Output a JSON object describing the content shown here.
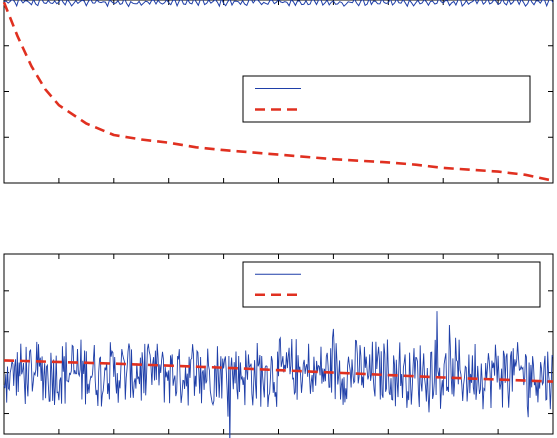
{
  "chart_data": [
    {
      "type": "line",
      "title": "",
      "xlabel": "",
      "ylabel": "",
      "grid": false,
      "legend": {
        "position": "center-right",
        "entries": [
          "",
          ""
        ]
      },
      "xlim": [
        0,
        10
      ],
      "ylim": [
        0,
        4
      ],
      "series": [
        {
          "color": "#1f3fa8",
          "style": "solid",
          "kind": "noise",
          "baseline": 3.95,
          "amplitude": 0.1,
          "x": [
            0,
            10
          ],
          "values": [
            3.95,
            3.95
          ]
        },
        {
          "color": "#e03020",
          "style": "dashed",
          "x": [
            0,
            0.25,
            0.5,
            0.75,
            1.0,
            1.5,
            2.0,
            2.5,
            3.0,
            3.5,
            4.0,
            5.0,
            6.0,
            7.0,
            7.5,
            8.0,
            9.0,
            9.5,
            10.0
          ],
          "values": [
            3.95,
            3.2,
            2.55,
            2.05,
            1.7,
            1.3,
            1.05,
            0.95,
            0.88,
            0.78,
            0.72,
            0.62,
            0.52,
            0.45,
            0.4,
            0.33,
            0.25,
            0.18,
            0.05
          ]
        }
      ]
    },
    {
      "type": "line",
      "title": "",
      "xlabel": "",
      "ylabel": "",
      "grid": false,
      "legend": {
        "position": "top-right",
        "entries": [
          "",
          ""
        ]
      },
      "xlim": [
        0,
        10
      ],
      "ylim": [
        -1.5,
        2.9
      ],
      "series": [
        {
          "color": "#1f3fa8",
          "style": "solid",
          "kind": "noise",
          "baseline": 0,
          "amplitude": 0.75,
          "x": [
            0,
            10
          ],
          "values": [
            0,
            0
          ]
        },
        {
          "color": "#e03020",
          "style": "dashed",
          "x": [
            0,
            2,
            4,
            6,
            8,
            10
          ],
          "values": [
            0.3,
            0.22,
            0.12,
            0.0,
            -0.12,
            -0.22
          ]
        }
      ]
    }
  ]
}
